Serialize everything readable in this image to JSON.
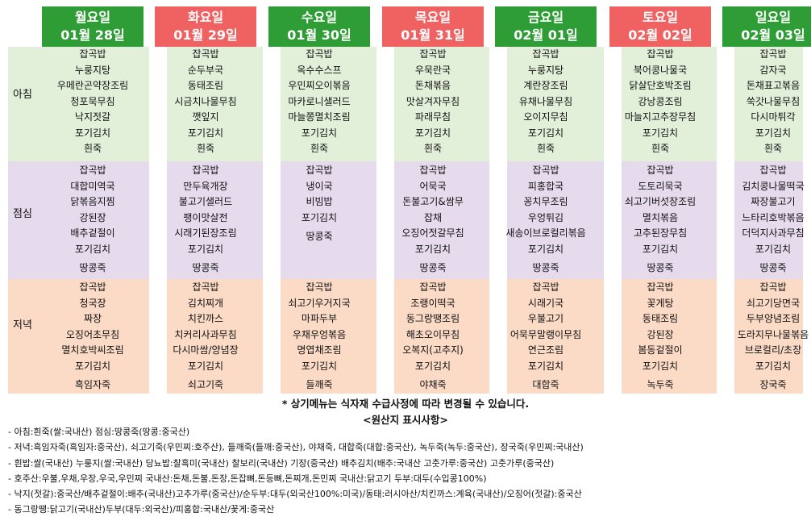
{
  "days": [
    {
      "day": "월요일",
      "date": "01월 28일",
      "color": "#2e9d36",
      "breakfast": [
        "잡곡밥",
        "누룽지탕",
        "우메란곤약장조림",
        "청포묵무침",
        "낙지젓갈",
        "포기김치",
        "흰죽"
      ],
      "lunch": [
        "잡곡밥",
        "대합미역국",
        "닭볶음지찜",
        "강된장",
        "배추겉절이",
        "포기김치",
        "땅콩죽"
      ],
      "dinner": [
        "잡곡밥",
        "청국장",
        "짜장",
        "오징어초무침",
        "멸치호박씨조림",
        "포기김치",
        "흑임자죽"
      ]
    },
    {
      "day": "화요일",
      "date": "01월 29일",
      "color": "#f06262",
      "breakfast": [
        "잡곡밥",
        "순두부국",
        "동태조림",
        "시금치나물무침",
        "깻잎지",
        "포기김치",
        "흰죽"
      ],
      "lunch": [
        "잡곡밥",
        "만두육개장",
        "불고기샐러드",
        "팽이맛살전",
        "시래기된장조림",
        "포기김치",
        "땅콩죽"
      ],
      "dinner": [
        "잡곡밥",
        "김치찌개",
        "치킨까스",
        "치커리사과무침",
        "다시마쌈/양념장",
        "포기김치",
        "쇠고기죽"
      ]
    },
    {
      "day": "수요일",
      "date": "01월 30일",
      "color": "#2e9d36",
      "breakfast": [
        "잡곡밥",
        "옥수수스프",
        "우민찌오이볶음",
        "마카로니샐러드",
        "마늘쫑멸치조림",
        "포기김치",
        "흰죽"
      ],
      "lunch": [
        "잡곡밥",
        "냉이국",
        "비빔밥",
        "",
        "",
        "포기김치",
        "땅콩죽"
      ],
      "dinner": [
        "잡곡밥",
        "쇠고기우거지국",
        "마파두부",
        "우채우엉볶음",
        "명엽채조림",
        "포기김치",
        "들깨죽"
      ]
    },
    {
      "day": "목요일",
      "date": "01월 31일",
      "color": "#f06262",
      "breakfast": [
        "잡곡밥",
        "우묵란국",
        "돈채볶음",
        "맛살겨자무침",
        "파래무침",
        "포기김치",
        "흰죽"
      ],
      "lunch": [
        "잡곡밥",
        "어묵국",
        "돈불고기&쌈무",
        "잡채",
        "오징어젓갈무침",
        "포기김치",
        "땅콩죽"
      ],
      "dinner": [
        "잡곡밥",
        "조랭이떡국",
        "동그랑땡조림",
        "해초오이무침",
        "오복지(고추지)",
        "포기김치",
        "야채죽"
      ]
    },
    {
      "day": "금요일",
      "date": "02월 01일",
      "color": "#2e9d36",
      "breakfast": [
        "잡곡밥",
        "누룽지탕",
        "계란장조림",
        "유채나물무침",
        "오이지무침",
        "포기김치",
        "흰죽"
      ],
      "lunch": [
        "잡곡밥",
        "피홍합국",
        "꽁치무조림",
        "우엉튀김",
        "새송이브로컬리볶음",
        "포기김치",
        "땅콩죽"
      ],
      "dinner": [
        "잡곡밥",
        "시래기국",
        "우불고기",
        "어묵무말랭이무침",
        "연근조림",
        "포기김치",
        "대합죽"
      ]
    },
    {
      "day": "토요일",
      "date": "02월 02일",
      "color": "#f06262",
      "breakfast": [
        "잡곡밥",
        "북어콩나물국",
        "닭살단호박조림",
        "강낭콩조림",
        "마늘지고추장무침",
        "포기김치",
        "흰죽"
      ],
      "lunch": [
        "잡곡밥",
        "도토리묵국",
        "쇠고기버섯장조림",
        "멸치볶음",
        "고추된장무침",
        "포기김치",
        "땅콩죽"
      ],
      "dinner": [
        "잡곡밥",
        "꽃게탕",
        "동태조림",
        "강된장",
        "봄동겉절이",
        "포기김치",
        "녹두죽"
      ]
    },
    {
      "day": "일요일",
      "date": "02월 03일",
      "color": "#2e9d36",
      "breakfast": [
        "잡곡밥",
        "감자국",
        "돈채표고볶음",
        "쑥갓나물무침",
        "다시마튀각",
        "포기김치",
        "흰죽"
      ],
      "lunch": [
        "잡곡밥",
        "김치콩나물떡국",
        "짜장불고기",
        "느타리호박볶음",
        "더덕지사과무침",
        "포기김치",
        "땅콩죽"
      ],
      "dinner": [
        "잡곡밥",
        "쇠고기당면국",
        "두부양념조림",
        "도라지무나물볶음",
        "브로컬리/초장",
        "포기김치",
        "장국죽"
      ]
    }
  ],
  "meal_labels": {
    "breakfast": "아침",
    "lunch": "점심",
    "dinner": "저녁"
  },
  "band_colors": {
    "breakfast": "#e2f0da",
    "lunch": "#e6daed",
    "dinner": "#fbdac6"
  },
  "notice": "* 상기메뉴는 식자재 수급사정에 따라 변경될 수 있습니다.",
  "origin_title": "<원산지 표시사항>",
  "origin_lines": [
    "- 아침:흰죽(쌀:국내산) 점심:땅콩죽(땅콩:중국산)",
    "- 저녁:흑임자죽(흑임자:중국산), 쇠고기죽(우민찌:호주산), 들깨죽(들깨:중국산), 야채죽, 대합죽(대합:중국산), 녹두죽(녹두:중국산), 장국죽(우민찌:국내산)",
    "- 흰밥:쌀(국내산) 누룽지(쌀:국내산) 당뇨밥:찰흑미(국내산) 찰보리(국내산) 기장(중국산) 배추김치(배추:국내산 고춧가루:중국산) 고춧가루(중국산)",
    "- 호주산:우불,우채,우장,우국,우민찌 국내산:돈채,돈불,돈장,돈잡뼈,돈등뼈,돈찌개,돈민찌 국내산:닭고기 두부:대두(수입콩100%)",
    "- 낙지(젓갈):중국산/배추겉절이:배추(국내산)고추가루(중국산)/순두부:대두(외국산100%:미국)/동태:러시아산/치킨까스:계육(국내산)/오징어(젓갈):중국산",
    "- 동그랑땡:닭고기(국내산)두부(대두:외국산)/피홍합:국내산/꽃게:중국산"
  ]
}
